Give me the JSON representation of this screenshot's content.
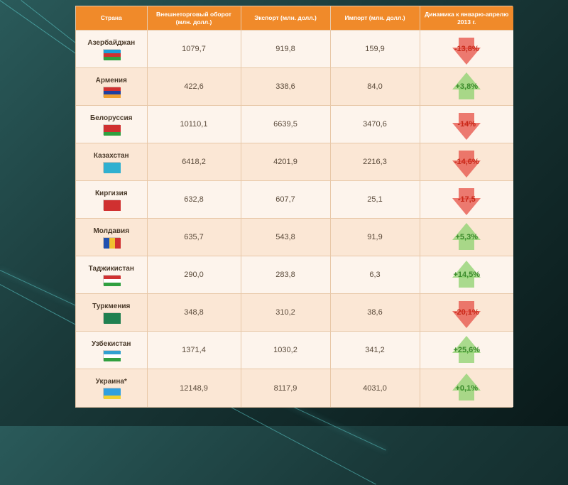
{
  "background": {
    "gradient_from": "#2a5a5a",
    "gradient_to": "#0a1a1a",
    "streak_color": "rgba(100,220,220,0.5)"
  },
  "table": {
    "header_bg": "#f08a2a",
    "header_color": "#ffffff",
    "row_odd_bg": "#fdf4ec",
    "row_even_bg": "#fbe7d5",
    "border_color": "#e8c8a8",
    "text_color": "#5a4a3a",
    "header_fontsize": 8.5,
    "cell_fontsize": 11,
    "columns": [
      {
        "key": "country",
        "label": "Страна",
        "width": 100
      },
      {
        "key": "turnover",
        "label": "Внешнеторговый оборот (млн. долл.)",
        "width": 132
      },
      {
        "key": "export",
        "label": "Экспорт (млн. долл.)",
        "width": 126
      },
      {
        "key": "import",
        "label": "Импорт (млн. долл.)",
        "width": 126
      },
      {
        "key": "dynamics",
        "label": "Динамика к январю-апрелю 2013 г.",
        "width": 132
      }
    ],
    "rows": [
      {
        "country": "Азербайджан",
        "flag_stripes": [
          "#1a9ed8",
          "#d03030",
          "#30a040"
        ],
        "turnover": "1079,7",
        "export": "919,8",
        "import": "159,9",
        "dyn_text": "-13,8%",
        "dyn_dir": "down"
      },
      {
        "country": "Армения",
        "flag_stripes": [
          "#d03030",
          "#2040a0",
          "#f0a030"
        ],
        "turnover": "422,6",
        "export": "338,6",
        "import": "84,0",
        "dyn_text": "+3,8%",
        "dyn_dir": "up"
      },
      {
        "country": "Белоруссия",
        "flag_stripes": [
          "#d03030",
          "#d03030",
          "#30a040"
        ],
        "turnover": "10110,1",
        "export": "6639,5",
        "import": "3470,6",
        "dyn_text": "-14%",
        "dyn_dir": "down"
      },
      {
        "country": "Казахстан",
        "flag_stripes": [
          "#30b0d0",
          "#30b0d0",
          "#30b0d0"
        ],
        "turnover": "6418,2",
        "export": "4201,9",
        "import": "2216,3",
        "dyn_text": "-14,6%",
        "dyn_dir": "down"
      },
      {
        "country": "Киргизия",
        "flag_stripes": [
          "#d03030",
          "#d03030",
          "#d03030"
        ],
        "turnover": "632,8",
        "export": "607,7",
        "import": "25,1",
        "dyn_text": "-17,5",
        "dyn_dir": "down"
      },
      {
        "country": "Молдавия",
        "flag_stripes_v": [
          "#2050b0",
          "#f0c030",
          "#d03030"
        ],
        "turnover": "635,7",
        "export": "543,8",
        "import": "91,9",
        "dyn_text": "+5,3%",
        "dyn_dir": "up"
      },
      {
        "country": "Таджикистан",
        "flag_stripes": [
          "#d03030",
          "#ffffff",
          "#30a040"
        ],
        "turnover": "290,0",
        "export": "283,8",
        "import": "6,3",
        "dyn_text": "+14,5%",
        "dyn_dir": "up"
      },
      {
        "country": "Туркмения",
        "flag_stripes": [
          "#208050",
          "#208050",
          "#208050"
        ],
        "turnover": "348,8",
        "export": "310,2",
        "import": "38,6",
        "dyn_text": "-20,1%",
        "dyn_dir": "down"
      },
      {
        "country": "Узбекистан",
        "flag_stripes": [
          "#30a0d0",
          "#ffffff",
          "#30a040"
        ],
        "turnover": "1371,4",
        "export": "1030,2",
        "import": "341,2",
        "dyn_text": "+25,6%",
        "dyn_dir": "up"
      },
      {
        "country": "Украина*",
        "flag_stripes": [
          "#30a0e0",
          "#30a0e0",
          "#f0d030"
        ],
        "turnover": "12148,9",
        "export": "8117,9",
        "import": "4031,0",
        "dyn_text": "+0,1%",
        "dyn_dir": "up"
      }
    ],
    "arrow_down_color": "rgba(230,80,70,0.75)",
    "arrow_up_color": "rgba(140,210,110,0.75)",
    "neg_text_color": "#c82818",
    "pos_text_color": "#3a8a2a"
  }
}
